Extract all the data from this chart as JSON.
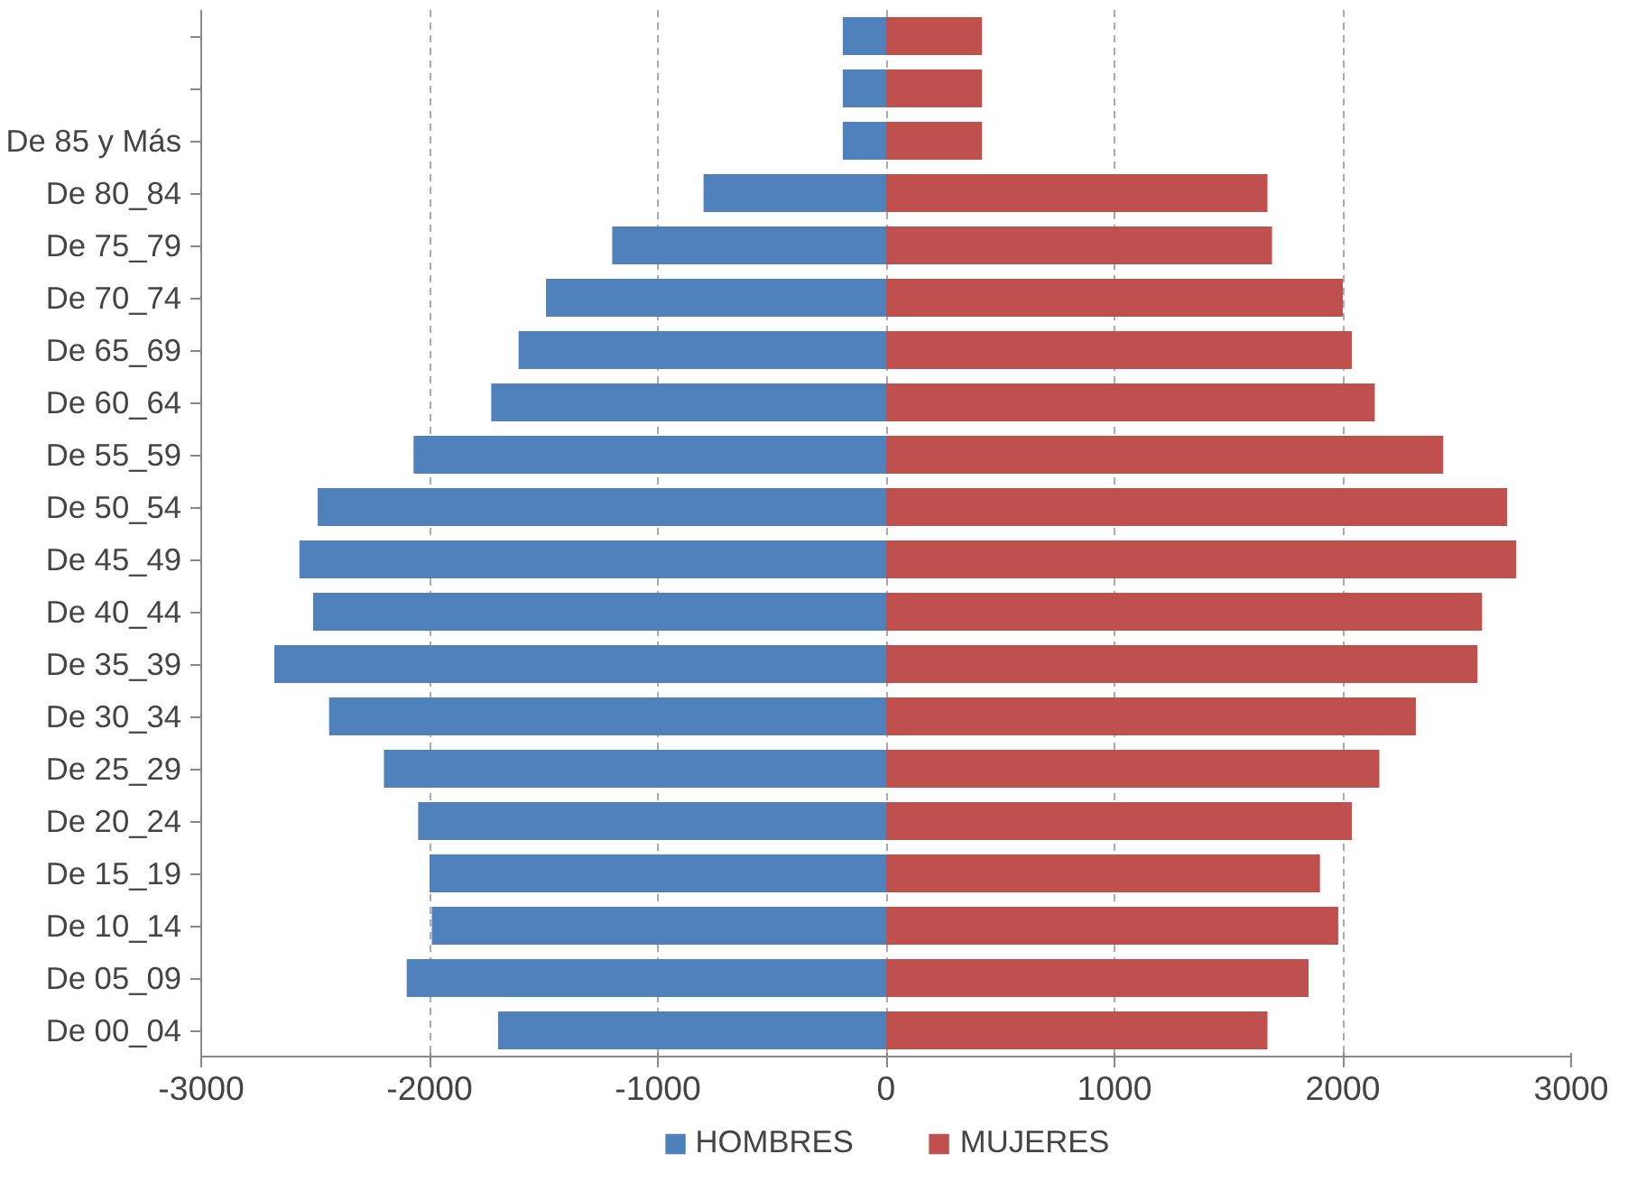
{
  "chart_data": {
    "type": "bar",
    "orientation": "horizontal",
    "categories": [
      null,
      null,
      "De 85 y Más",
      "De 80_84",
      "De 75_79",
      "De 70_74",
      "De 65_69",
      "De 60_64",
      "De 55_59",
      "De 50_54",
      "De 45_49",
      "De 40_44",
      "De 35_39",
      "De 30_34",
      "De 25_29",
      "De 20_24",
      "De 15_19",
      "De 10_14",
      "De 05_09",
      "De 00_04"
    ],
    "series": [
      {
        "name": "HOMBRES",
        "color": "#4f81bd",
        "values": [
          -190,
          -190,
          -190,
          -800,
          -1200,
          -1490,
          -1610,
          -1730,
          -2070,
          -2490,
          -2570,
          -2510,
          -2680,
          -2440,
          -2200,
          -2050,
          -2000,
          -1990,
          -2100,
          -1700
        ]
      },
      {
        "name": "MUJERES",
        "color": "#c0504d",
        "values": [
          420,
          420,
          420,
          1670,
          1690,
          2000,
          2040,
          2140,
          2440,
          2720,
          2760,
          2610,
          2590,
          2320,
          2160,
          2040,
          1900,
          1980,
          1850,
          1670
        ]
      }
    ],
    "xlim": [
      -3000,
      3000
    ],
    "xticks": [
      -3000,
      -2000,
      -1000,
      0,
      1000,
      2000,
      3000
    ],
    "grid": "x",
    "legend": "bottom",
    "stacked": true
  }
}
